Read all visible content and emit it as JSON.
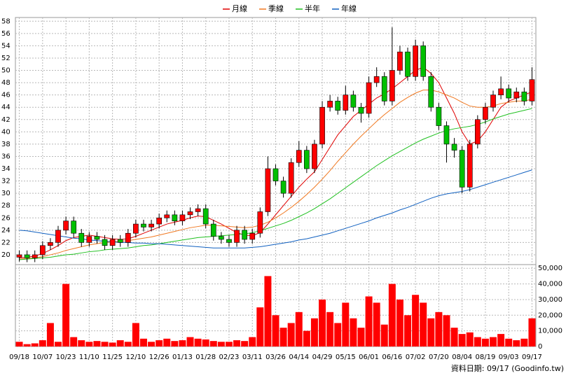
{
  "chart_data": {
    "type": "candlestick",
    "categories": [
      "09/18",
      null,
      null,
      "10/07",
      null,
      null,
      "10/23",
      null,
      null,
      "11/10",
      null,
      null,
      "11/25",
      null,
      null,
      "12/10",
      null,
      null,
      "12/26",
      null,
      null,
      "01/13",
      null,
      null,
      "01/28",
      null,
      null,
      "02/23",
      null,
      null,
      "03/11",
      null,
      null,
      "03/26",
      null,
      null,
      "04/14",
      null,
      null,
      "04/29",
      null,
      null,
      "05/15",
      null,
      null,
      "06/01",
      null,
      null,
      "06/16",
      null,
      null,
      "07/02",
      null,
      null,
      "07/20",
      null,
      null,
      "08/04",
      null,
      null,
      "08/19",
      null,
      null,
      "09/03",
      null,
      null,
      "09/17"
    ],
    "open": [
      19.6,
      20,
      19.5,
      20,
      21.5,
      22,
      24,
      25.5,
      23.5,
      22,
      23,
      22.5,
      21.5,
      22.5,
      22,
      23.5,
      25,
      24.5,
      25,
      26,
      26.5,
      25.5,
      26.5,
      27,
      27.5,
      25,
      23,
      22.5,
      22,
      24,
      22.5,
      23.5,
      27,
      34,
      32,
      30,
      35,
      37,
      34,
      38,
      44,
      45,
      43.5,
      46,
      44,
      43,
      48,
      49,
      45,
      50,
      53,
      49,
      54,
      49,
      44,
      41,
      38,
      37,
      31,
      38,
      42,
      44,
      46,
      47,
      45.5,
      46.5,
      45
    ],
    "high": [
      20.7,
      20.7,
      20.7,
      22.2,
      22.7,
      24.7,
      26.2,
      26.2,
      24.2,
      23.7,
      23.7,
      23.2,
      23.2,
      23.2,
      24.2,
      25.7,
      25.7,
      25.7,
      26.7,
      27.2,
      27.2,
      27.2,
      27.7,
      28.2,
      28.2,
      25.7,
      23.7,
      23.2,
      24.7,
      24.7,
      24.2,
      27.7,
      36,
      34.7,
      32.7,
      35.7,
      38.5,
      37.7,
      38.7,
      45,
      46,
      45.7,
      47.5,
      46.7,
      44.7,
      49,
      50.5,
      49.7,
      57,
      54,
      53.7,
      55,
      54.7,
      49.7,
      44.7,
      41.7,
      39,
      37.7,
      38.7,
      42.7,
      44.7,
      46.7,
      49,
      47.7,
      47.2,
      47.2,
      50.5
    ],
    "low": [
      18.9,
      18.8,
      18.8,
      19.3,
      20.8,
      21.3,
      23.3,
      22.8,
      21.3,
      21.3,
      21.8,
      20.8,
      20.8,
      21.3,
      21.3,
      22.8,
      23.8,
      23.8,
      24.3,
      25.3,
      24.8,
      24.8,
      25.8,
      26.3,
      24.3,
      22.3,
      21.8,
      21.3,
      21.3,
      21.8,
      21.8,
      22.8,
      26.3,
      31.3,
      29.3,
      29.3,
      34.3,
      33.3,
      33.3,
      37.3,
      43.3,
      42.8,
      42.8,
      43.3,
      41.5,
      42.3,
      47.3,
      44.3,
      44.3,
      49.3,
      48.3,
      48.3,
      48.3,
      43.3,
      40.3,
      35,
      35.8,
      30,
      30.3,
      37.3,
      41.3,
      43.3,
      45.3,
      44.8,
      44.8,
      44.3,
      44.3
    ],
    "close": [
      20,
      19.5,
      20,
      21.5,
      22,
      24,
      25.5,
      23.5,
      22,
      23,
      22.5,
      21.5,
      22.5,
      22,
      23.5,
      25,
      24.5,
      25,
      26,
      26.5,
      25.5,
      26.5,
      27,
      27.5,
      25,
      23,
      22.5,
      22,
      24,
      22.5,
      23.5,
      27,
      34,
      32,
      30,
      35,
      37,
      34,
      38,
      44,
      45,
      43.5,
      46,
      44,
      43,
      48,
      49,
      45,
      50,
      53,
      49,
      54,
      49,
      44,
      41,
      38,
      37,
      31,
      38,
      42,
      44,
      46,
      47,
      45.5,
      46.5,
      45,
      48.5
    ],
    "up_color": "#ff0000",
    "down_color": "#00c000",
    "series": [
      {
        "name": "月線",
        "color": "#e00000",
        "values": [
          19.5,
          19.6,
          19.8,
          20.2,
          20.8,
          21.5,
          22.3,
          22.8,
          23,
          23.2,
          23,
          22.8,
          22.6,
          22.5,
          22.6,
          23,
          23.5,
          24,
          24.5,
          25,
          25.3,
          25.6,
          26,
          26.3,
          26.2,
          25.6,
          25,
          24.3,
          23.6,
          23.2,
          23.1,
          23.6,
          25,
          26.5,
          28,
          29.5,
          31,
          32.3,
          33.5,
          35.5,
          37.5,
          39.5,
          41,
          42.5,
          43.5,
          44.5,
          45.5,
          46.2,
          47,
          48,
          49,
          50,
          50.5,
          49.5,
          48,
          45.5,
          43,
          40,
          38,
          38.5,
          40,
          42,
          44,
          45,
          45.5,
          46,
          46.5
        ]
      },
      {
        "name": "季線",
        "color": "#f07820",
        "values": [
          19.3,
          19.4,
          19.5,
          19.7,
          20,
          20.3,
          20.7,
          21,
          21.3,
          21.6,
          21.8,
          22,
          22.1,
          22.2,
          22.3,
          22.5,
          22.7,
          22.9,
          23.2,
          23.5,
          23.8,
          24.1,
          24.4,
          24.6,
          24.8,
          24.8,
          24.7,
          24.6,
          24.5,
          24.4,
          24.5,
          24.8,
          25.3,
          26,
          26.8,
          27.7,
          28.7,
          29.8,
          31,
          32.3,
          33.7,
          35.2,
          36.6,
          38,
          39.3,
          40.5,
          41.7,
          42.8,
          43.8,
          44.8,
          45.6,
          46.3,
          46.8,
          46.8,
          46.5,
          46,
          45.5,
          44.8,
          44.2,
          44,
          44,
          44.2,
          44.6,
          44.8,
          45,
          45,
          45.3
        ]
      },
      {
        "name": "半年",
        "color": "#20c020",
        "values": [
          19.2,
          19.3,
          19.4,
          19.5,
          19.6,
          19.8,
          20,
          20.1,
          20.3,
          20.5,
          20.6,
          20.8,
          20.9,
          21,
          21.1,
          21.3,
          21.5,
          21.6,
          21.8,
          22,
          22.2,
          22.4,
          22.6,
          22.8,
          22.9,
          23,
          23.1,
          23.2,
          23.3,
          23.4,
          23.6,
          23.9,
          24.3,
          24.7,
          25.1,
          25.6,
          26.2,
          26.8,
          27.5,
          28.3,
          29.1,
          30,
          30.9,
          31.8,
          32.7,
          33.6,
          34.5,
          35.3,
          36.1,
          36.8,
          37.5,
          38.2,
          38.8,
          39.3,
          39.8,
          40.2,
          40.5,
          40.7,
          40.9,
          41.2,
          41.6,
          42.1,
          42.5,
          42.9,
          43.2,
          43.5,
          43.8
        ]
      },
      {
        "name": "年線",
        "color": "#1060c0",
        "values": [
          24,
          23.9,
          23.7,
          23.5,
          23.3,
          23.1,
          22.9,
          22.7,
          22.6,
          22.4,
          22.3,
          22.2,
          22.1,
          22,
          22,
          21.9,
          21.9,
          21.8,
          21.8,
          21.7,
          21.6,
          21.5,
          21.4,
          21.3,
          21.2,
          21.1,
          21.1,
          21.1,
          21.1,
          21.1,
          21.2,
          21.3,
          21.5,
          21.7,
          21.9,
          22.1,
          22.4,
          22.6,
          22.9,
          23.2,
          23.5,
          23.9,
          24.3,
          24.7,
          25.1,
          25.5,
          26,
          26.4,
          26.8,
          27.3,
          27.7,
          28.2,
          28.7,
          29.2,
          29.6,
          29.9,
          30.1,
          30.3,
          30.6,
          31,
          31.4,
          31.8,
          32.2,
          32.6,
          33,
          33.4,
          33.8
        ]
      }
    ],
    "ylim": [
      18.4,
      58.6
    ],
    "yticks": [
      20,
      22,
      24,
      26,
      28,
      30,
      32,
      34,
      36,
      38,
      40,
      42,
      44,
      46,
      48,
      50,
      52,
      54,
      56,
      58
    ],
    "volume": {
      "color": "#ff0000",
      "values": [
        3000,
        1500,
        2000,
        4000,
        15000,
        3000,
        40000,
        6000,
        4000,
        3000,
        3500,
        3000,
        2500,
        4000,
        3000,
        15000,
        5000,
        3000,
        4000,
        5000,
        3500,
        4000,
        6000,
        5000,
        4500,
        3500,
        3000,
        3000,
        4000,
        3500,
        6000,
        25000,
        45000,
        20000,
        12000,
        15000,
        22000,
        10000,
        18000,
        30000,
        22000,
        15000,
        28000,
        18000,
        12000,
        32000,
        28000,
        14000,
        40000,
        30000,
        20000,
        33000,
        28000,
        18000,
        22000,
        20000,
        12000,
        8000,
        9000,
        6000,
        5000,
        6000,
        8000,
        5000,
        4000,
        5000,
        18000
      ],
      "y2lim": [
        0,
        51000
      ],
      "y2ticks": [
        0,
        {
          "value": 10000,
          "label": "10,000"
        },
        {
          "value": 20000,
          "label": "20,000"
        },
        {
          "value": 30000,
          "label": "30,000"
        },
        {
          "value": 40000,
          "label": "40,000"
        },
        {
          "value": 50000,
          "label": "50,000"
        }
      ]
    },
    "grid": true,
    "source": "資料日期: 09/17 (Goodinfo.tw)"
  }
}
